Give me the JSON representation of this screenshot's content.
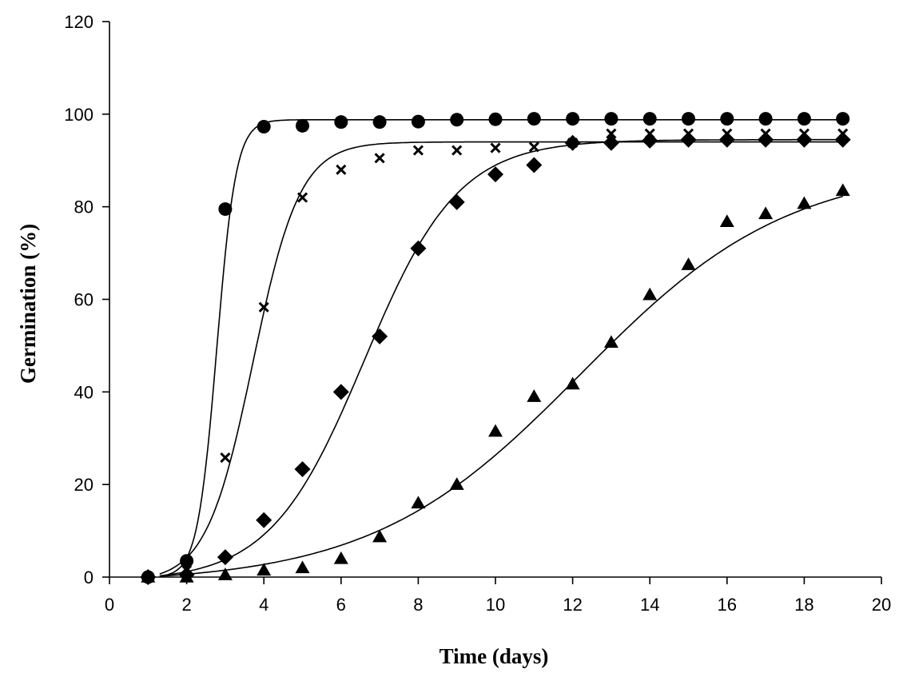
{
  "chart_data": {
    "type": "scatter",
    "title": "",
    "xlabel": "Time (days)",
    "ylabel": "Germination (%)",
    "xlim": [
      0,
      20
    ],
    "ylim": [
      0,
      120
    ],
    "xticks": [
      0,
      2,
      4,
      6,
      8,
      10,
      12,
      14,
      16,
      18,
      20
    ],
    "yticks": [
      0,
      20,
      40,
      60,
      80,
      100,
      120
    ],
    "grid": false,
    "legend": "none",
    "series": [
      {
        "name": "circle",
        "marker": "circle",
        "x": [
          1,
          2,
          3,
          4,
          5,
          6,
          7,
          8,
          9,
          10,
          11,
          12,
          13,
          14,
          15,
          16,
          17,
          18,
          19
        ],
        "y": [
          0,
          3.5,
          79.5,
          97.3,
          97.5,
          98.3,
          98.3,
          98.4,
          98.8,
          98.9,
          99,
          99,
          99,
          99,
          99,
          99,
          99,
          99,
          99
        ],
        "fit": {
          "model": "logistic",
          "max": 98.8,
          "x50": 2.78,
          "slope": 4.0
        }
      },
      {
        "name": "cross",
        "marker": "x",
        "x": [
          1,
          2,
          3,
          4,
          5,
          6,
          7,
          8,
          9,
          10,
          11,
          12,
          13,
          14,
          15,
          16,
          17,
          18,
          19
        ],
        "y": [
          0,
          1.5,
          25.8,
          58.3,
          82,
          88,
          90.5,
          92.2,
          92.2,
          92.7,
          92.9,
          93.8,
          95.8,
          95.8,
          95.8,
          95.8,
          95.8,
          95.8,
          95.8
        ],
        "fit": {
          "model": "logistic",
          "max": 94,
          "x50": 3.72,
          "slope": 1.65
        }
      },
      {
        "name": "diamond",
        "marker": "diamond",
        "x": [
          1,
          2,
          3,
          4,
          5,
          6,
          7,
          8,
          9,
          10,
          11,
          12,
          13,
          14,
          15,
          16,
          17,
          18,
          19
        ],
        "y": [
          0,
          0.5,
          4.3,
          12.3,
          23.3,
          40,
          52,
          71,
          81,
          87,
          89,
          93.8,
          93.8,
          94.3,
          94.5,
          94.5,
          94.5,
          94.5,
          94.5
        ],
        "fit": {
          "model": "logistic",
          "max": 94.5,
          "x50": 6.6,
          "slope": 0.82
        }
      },
      {
        "name": "triangle",
        "marker": "triangle",
        "x": [
          1,
          2,
          3,
          4,
          5,
          6,
          7,
          8,
          9,
          10,
          11,
          12,
          13,
          14,
          15,
          16,
          17,
          18,
          19
        ],
        "y": [
          0,
          0,
          0.5,
          1.5,
          2,
          4,
          8.7,
          16,
          20,
          31.5,
          39,
          41.7,
          50.7,
          61,
          67.5,
          76.8,
          78.5,
          80.7,
          83.5
        ],
        "fit": {
          "model": "logistic",
          "max": 89,
          "x50": 12.2,
          "slope": 0.37
        }
      }
    ]
  }
}
